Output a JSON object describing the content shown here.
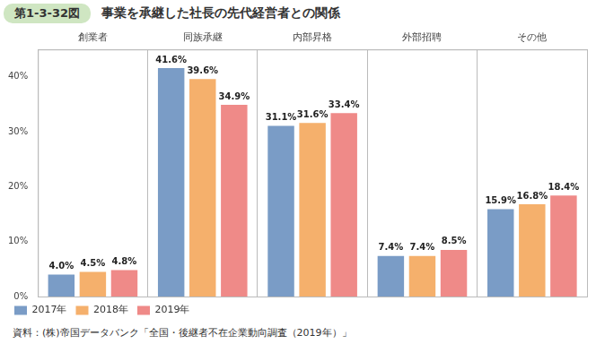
{
  "chart_data": {
    "type": "bar",
    "figure_number": "第1-3-32図",
    "title": "事業を承継した社長の先代経営者との関係",
    "source": "資料：(株)帝国データバンク「全国・後継者不在企業動向調査（2019年）」",
    "categories": [
      "創業者",
      "同族承継",
      "内部昇格",
      "外部招聘",
      "その他"
    ],
    "series": [
      {
        "name": "2017年",
        "color": "#7a9cc6",
        "values": [
          4.0,
          41.6,
          31.1,
          7.4,
          15.9
        ],
        "value_labels": [
          "4.0%",
          "41.6%",
          "31.1%",
          "7.4%",
          "15.9%"
        ]
      },
      {
        "name": "2018年",
        "color": "#f5b06c",
        "values": [
          4.5,
          39.6,
          31.6,
          7.4,
          16.8
        ],
        "value_labels": [
          "4.5%",
          "39.6%",
          "31.6%",
          "7.4%",
          "16.8%"
        ]
      },
      {
        "name": "2019年",
        "color": "#ef8a88",
        "values": [
          4.8,
          34.9,
          33.4,
          8.5,
          18.4
        ],
        "value_labels": [
          "4.8%",
          "34.9%",
          "33.4%",
          "8.5%",
          "18.4%"
        ]
      }
    ],
    "ylim": [
      0,
      45
    ],
    "yticks": [
      {
        "value": 0,
        "label": "0%"
      },
      {
        "value": 10,
        "label": "10%"
      },
      {
        "value": 20,
        "label": "20%"
      },
      {
        "value": 30,
        "label": "30%"
      },
      {
        "value": 40,
        "label": "40%"
      }
    ],
    "grid": false,
    "legend": "bottom-left",
    "data_labels": true
  }
}
